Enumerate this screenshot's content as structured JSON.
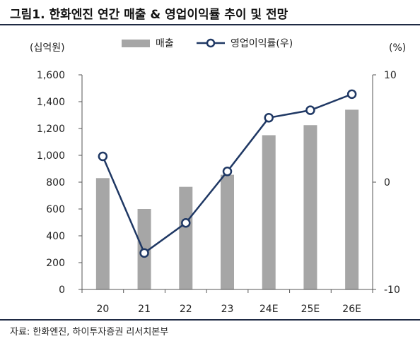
{
  "figure": {
    "title": "그림1.   한화엔진 연간 매출 & 영업이익률 추이 및 전망",
    "source": "자료: 한화엔진, 하이투자증권 리서치본부"
  },
  "chart_data": {
    "type": "bar",
    "categories": [
      "20",
      "21",
      "22",
      "23",
      "24E",
      "25E",
      "26E"
    ],
    "series": [
      {
        "name": "매출",
        "type": "bar",
        "axis": "left",
        "color": "#a6a6a6",
        "values": [
          830,
          600,
          765,
          855,
          1150,
          1225,
          1340
        ]
      },
      {
        "name": "영업이익률(우)",
        "type": "line",
        "axis": "right",
        "color": "#1f3864",
        "values": [
          2.4,
          -6.6,
          -3.8,
          1.0,
          6.0,
          6.7,
          8.2
        ]
      }
    ],
    "y_left": {
      "unit": "(십억원)",
      "min": 0,
      "max": 1600,
      "ticks": [
        0,
        200,
        400,
        600,
        800,
        1000,
        1200,
        1400,
        1600
      ],
      "tick_labels": [
        "0",
        "200",
        "400",
        "600",
        "800",
        "1,000",
        "1,200",
        "1,400",
        "1,600"
      ]
    },
    "y_right": {
      "unit": "(%)",
      "min": -10,
      "max": 10,
      "ticks": [
        -10,
        0,
        10
      ],
      "tick_labels": [
        "-10",
        "0",
        "10"
      ]
    },
    "legend_position": "top-center",
    "grid": false
  }
}
